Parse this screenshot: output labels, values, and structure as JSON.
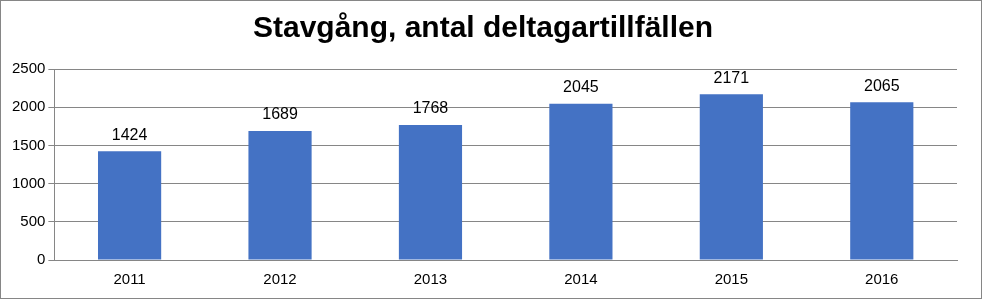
{
  "chart_data": {
    "type": "bar",
    "title": "Stavgång, antal deltagartillfällen",
    "categories": [
      "2011",
      "2012",
      "2013",
      "2014",
      "2015",
      "2016"
    ],
    "values": [
      1424,
      1689,
      1768,
      2045,
      2171,
      2065
    ],
    "color": "#4472c4",
    "ylim": [
      0,
      2500
    ],
    "yticks": [
      0,
      500,
      1000,
      1500,
      2000,
      2500
    ],
    "grid": true,
    "data_labels": true
  }
}
